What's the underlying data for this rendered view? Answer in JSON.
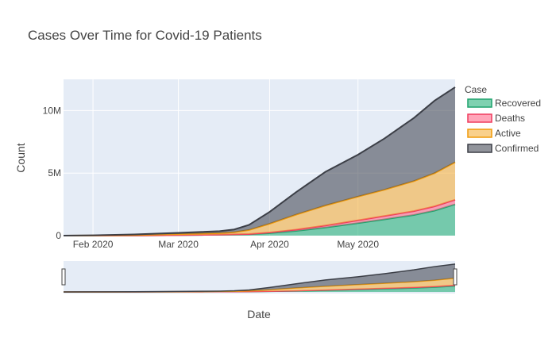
{
  "chart_data": {
    "type": "area",
    "title": "Cases Over Time for Covid-19 Patients",
    "xlabel": "Date",
    "ylabel": "Count",
    "stacked": true,
    "x_start": "2020-01-22",
    "x_end": "2020-06-03",
    "xlim": [
      "2020-01-22",
      "2020-06-03"
    ],
    "ylim": [
      0,
      12500000
    ],
    "x_ticks": [
      {
        "date": "2020-02-01",
        "label": "Feb 2020"
      },
      {
        "date": "2020-03-01",
        "label": "Mar 2020"
      },
      {
        "date": "2020-04-01",
        "label": "Apr 2020"
      },
      {
        "date": "2020-05-01",
        "label": "May 2020"
      }
    ],
    "y_ticks": [
      {
        "value": 0,
        "label": "0"
      },
      {
        "value": 5000000,
        "label": "5M"
      },
      {
        "value": 10000000,
        "label": "10M"
      }
    ],
    "grid": true,
    "legend_title": "Case",
    "legend_position": "right",
    "range_slider": true,
    "x": [
      "2020-01-22",
      "2020-02-01",
      "2020-02-15",
      "2020-03-01",
      "2020-03-10",
      "2020-03-15",
      "2020-03-20",
      "2020-03-25",
      "2020-04-01",
      "2020-04-10",
      "2020-04-20",
      "2020-05-01",
      "2020-05-10",
      "2020-05-20",
      "2020-05-27",
      "2020-06-03"
    ],
    "series": [
      {
        "name": "Recovered",
        "color": "#2ab27b",
        "line": "#1fa36d",
        "values": [
          0,
          0,
          5000,
          40000,
          60000,
          75000,
          90000,
          110000,
          200000,
          380000,
          650000,
          1000000,
          1300000,
          1650000,
          2000000,
          2500000
        ]
      },
      {
        "name": "Deaths",
        "color": "#ff6b8a",
        "line": "#ef3b5d",
        "values": [
          0,
          0,
          1000,
          3000,
          5000,
          7000,
          12000,
          20000,
          50000,
          100000,
          160000,
          220000,
          270000,
          310000,
          340000,
          370000
        ]
      },
      {
        "name": "Active",
        "color": "#f5b040",
        "line": "#f09a0a",
        "values": [
          500,
          10000,
          40000,
          80000,
          110000,
          120000,
          170000,
          320000,
          700000,
          1200000,
          1600000,
          1900000,
          2100000,
          2400000,
          2650000,
          3000000
        ]
      },
      {
        "name": "Confirmed",
        "color": "#474c58",
        "line": "#3c3f47",
        "values": [
          500,
          12000,
          48000,
          96000,
          131000,
          155000,
          222000,
          410000,
          950000,
          1800000,
          2700000,
          3350000,
          4100000,
          5050000,
          5800000,
          6000000
        ]
      }
    ]
  }
}
